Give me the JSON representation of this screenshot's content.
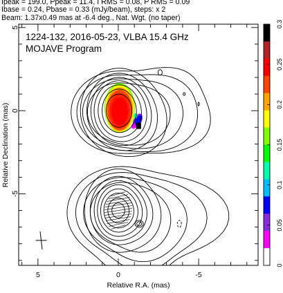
{
  "header": {
    "line1": "Ipeak = 199.0, Ppeak = 11.4, I RMS = 0.08, P RMS = 0.09",
    "line2": "Ibase = 0.24, Pbase = 0.33 (mJy/beam), steps: x 2",
    "line3": "Beam: 1.37x0.49 mas at -6.4 deg., Nat. Wgt. (no taper)"
  },
  "chart_data": {
    "type": "contour",
    "title": "1224-132, 2016-05-23, VLBA 15.4 GHz",
    "subtitle": "MOJAVE Program",
    "xlabel": "Relative R.A. (mas)",
    "ylabel": "Relative Declination (mas)",
    "xlim": [
      6.2,
      -8.7
    ],
    "ylim": [
      -9.3,
      5.2
    ],
    "x_ticks": [
      5,
      0,
      -5
    ],
    "y_ticks": [
      5,
      0,
      -5
    ],
    "colorbar": {
      "min": 0,
      "max": 0.3,
      "ticks": [
        0,
        0.05,
        0.1,
        0.15,
        0.2,
        0.25,
        0.3
      ],
      "labels": [
        "0",
        "0.05",
        "0.1",
        "0.15",
        "0.2",
        "0.25",
        "0.3"
      ],
      "colors": [
        "#ffffff",
        "#ff00ff",
        "#8a2be2",
        "#0000ff",
        "#00bfff",
        "#00ffb0",
        "#00ff00",
        "#7fff00",
        "#ffff00",
        "#ffa500",
        "#ff4500",
        "#ff0000",
        "#b22222",
        "#000000"
      ]
    },
    "components": [
      {
        "name": "core",
        "x": 0.0,
        "y": 0.0,
        "contour_radii": [
          [
            0.8,
            1.0
          ],
          [
            1.05,
            1.3
          ],
          [
            1.3,
            1.55
          ],
          [
            1.55,
            1.8
          ],
          [
            1.75,
            2.0
          ],
          [
            2.0,
            2.25
          ],
          [
            2.4,
            2.55
          ]
        ]
      },
      {
        "name": "counter-image",
        "x": 0.0,
        "y": -6.0,
        "contour_radii": [
          [
            0.4,
            0.45
          ],
          [
            0.65,
            0.75
          ],
          [
            0.9,
            1.05
          ],
          [
            1.1,
            1.3
          ],
          [
            1.3,
            1.55
          ],
          [
            1.5,
            1.8
          ],
          [
            1.75,
            2.05
          ],
          [
            2.1,
            2.5
          ]
        ]
      }
    ],
    "polarization_patch": {
      "x": 0.0,
      "y": 0.0,
      "peak_mjy": 11.4
    },
    "polarization_knot": {
      "x": -1.2,
      "y": -0.6
    },
    "beam": {
      "major_mas": 1.37,
      "minor_mas": 0.49,
      "pa_deg": -6.4,
      "x": 4.8,
      "y": -7.8
    }
  }
}
